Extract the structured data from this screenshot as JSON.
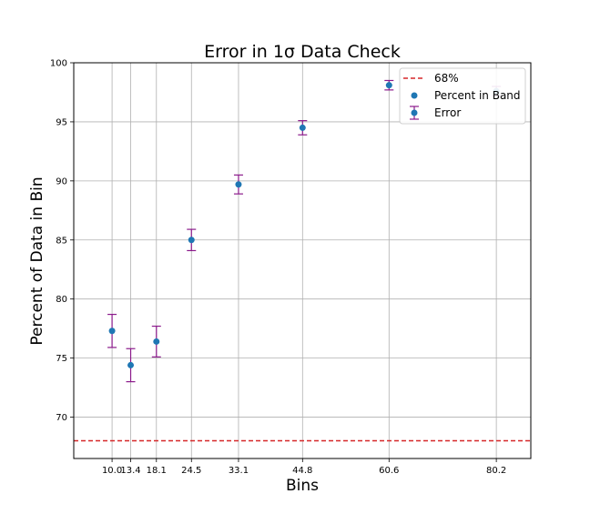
{
  "chart_data": {
    "type": "scatter",
    "title": "Error in 1σ Data Check",
    "xlabel": "Bins",
    "ylabel": "Percent of Data in Bin",
    "xlim": [
      3.0,
      86.5
    ],
    "ylim": [
      66.5,
      100.0
    ],
    "x_ticks": [
      10.0,
      13.4,
      18.1,
      24.5,
      33.1,
      44.8,
      60.6,
      80.2
    ],
    "x_tick_labels": [
      "10.0",
      "13.4",
      "18.1",
      "24.5",
      "33.1",
      "44.8",
      "60.6",
      "80.2"
    ],
    "y_ticks": [
      70,
      75,
      80,
      85,
      90,
      95,
      100
    ],
    "y_tick_labels": [
      "70",
      "75",
      "80",
      "85",
      "90",
      "95",
      "100"
    ],
    "grid": true,
    "legend_position": "top-right",
    "reference_line": {
      "label": "68%",
      "y": 68,
      "color": "#d62728",
      "style": "dashed"
    },
    "series": [
      {
        "name": "Percent in Band",
        "color": "#1f77b4",
        "x": [
          10.0,
          13.4,
          18.1,
          24.5,
          33.1,
          44.8,
          60.6,
          80.2
        ],
        "values": [
          77.3,
          74.4,
          76.4,
          85.0,
          89.7,
          94.5,
          98.1,
          97.6
        ]
      },
      {
        "name": "Error",
        "color": "#8b1a8b",
        "errors": [
          1.4,
          1.4,
          1.3,
          0.9,
          0.8,
          0.6,
          0.4,
          0.4
        ]
      }
    ]
  }
}
